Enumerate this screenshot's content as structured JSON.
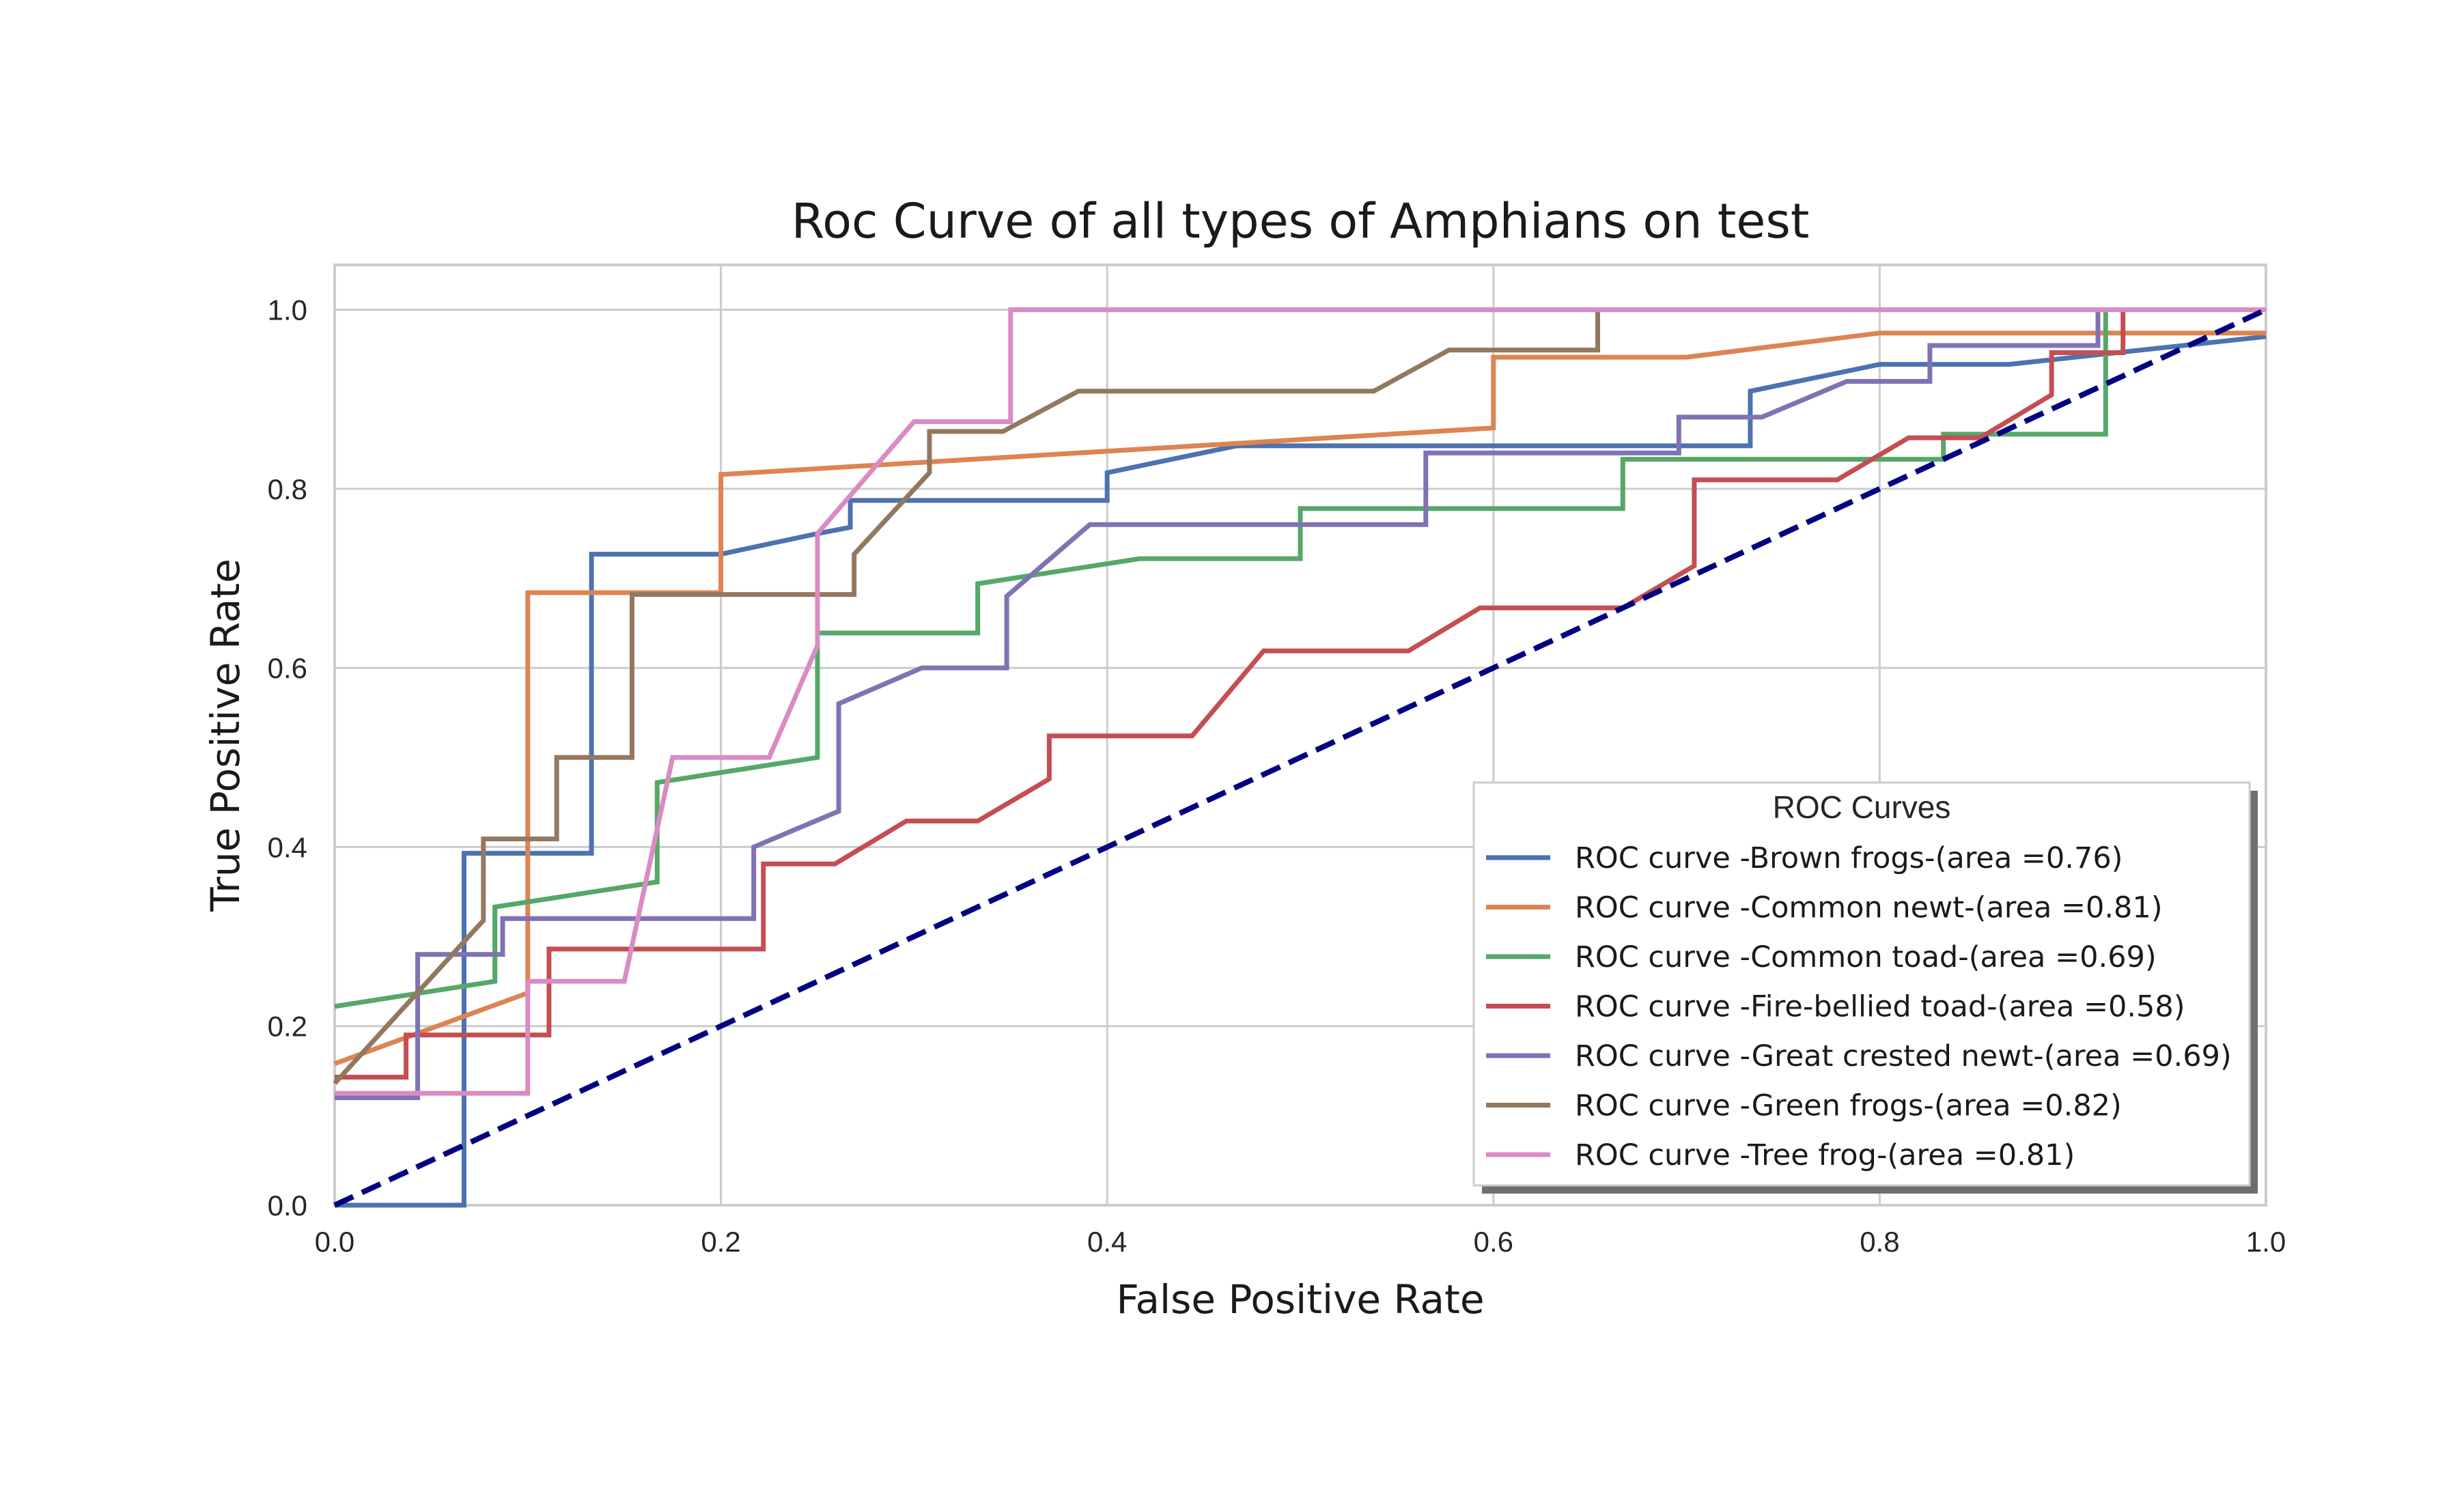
{
  "chart_data": {
    "type": "line",
    "title": "Roc Curve of all types of Amphians on test",
    "xlabel": "False Positive Rate",
    "ylabel": "True Positive Rate",
    "xlim": [
      0.0,
      1.0
    ],
    "ylim": [
      0.0,
      1.05
    ],
    "xticks": [
      "0.0",
      "0.2",
      "0.4",
      "0.6",
      "0.8",
      "1.0"
    ],
    "yticks": [
      "0.0",
      "0.2",
      "0.4",
      "0.6",
      "0.8",
      "1.0"
    ],
    "grid": true,
    "legend": {
      "title": "ROC Curves",
      "placement": "lower-right"
    },
    "baseline": {
      "color": "#000080",
      "style": "dashed",
      "x": [
        0,
        1
      ],
      "y": [
        0,
        1
      ]
    },
    "series": [
      {
        "name": "ROC curve -Brown frogs-(area =0.76)",
        "color": "#4c72b0",
        "x": [
          0,
          0.067,
          0.067,
          0.067,
          0.133,
          0.133,
          0.2,
          0.25,
          0.267,
          0.267,
          0.4,
          0.4,
          0.467,
          0.733,
          0.733,
          0.8,
          0.867,
          1.0
        ],
        "y": [
          0,
          0,
          0.0,
          0.393,
          0.393,
          0.727,
          0.727,
          0.75,
          0.757,
          0.787,
          0.787,
          0.818,
          0.848,
          0.848,
          0.909,
          0.939,
          0.939,
          0.97
        ]
      },
      {
        "name": "ROC curve -Common newt-(area =0.81)",
        "color": "#dd8452",
        "x": [
          0,
          0.1,
          0.1,
          0.2,
          0.2,
          0.6,
          0.6,
          0.7,
          0.8,
          1.0
        ],
        "y": [
          0.158,
          0.237,
          0.684,
          0.684,
          0.816,
          0.868,
          0.947,
          0.947,
          0.974,
          0.974
        ]
      },
      {
        "name": "ROC curve -Common toad-(area =0.69)",
        "color": "#55a868",
        "x": [
          0,
          0.083,
          0.083,
          0.167,
          0.167,
          0.25,
          0.25,
          0.333,
          0.333,
          0.417,
          0.5,
          0.5,
          0.667,
          0.667,
          0.833,
          0.833,
          0.917,
          0.917
        ],
        "y": [
          0.222,
          0.25,
          0.333,
          0.361,
          0.472,
          0.5,
          0.639,
          0.639,
          0.694,
          0.722,
          0.722,
          0.778,
          0.778,
          0.833,
          0.833,
          0.861,
          0.861,
          1.0
        ]
      },
      {
        "name": "ROC curve -Fire-bellied toad-(area =0.58)",
        "color": "#c44e52",
        "x": [
          0,
          0.037,
          0.037,
          0.111,
          0.111,
          0.222,
          0.222,
          0.259,
          0.296,
          0.333,
          0.37,
          0.37,
          0.444,
          0.481,
          0.556,
          0.593,
          0.667,
          0.704,
          0.704,
          0.778,
          0.815,
          0.852,
          0.889,
          0.889,
          0.926,
          0.926
        ],
        "y": [
          0.143,
          0.143,
          0.19,
          0.19,
          0.286,
          0.286,
          0.381,
          0.381,
          0.429,
          0.429,
          0.476,
          0.524,
          0.524,
          0.619,
          0.619,
          0.667,
          0.667,
          0.714,
          0.81,
          0.81,
          0.857,
          0.857,
          0.905,
          0.952,
          0.952,
          1.0
        ]
      },
      {
        "name": "ROC curve -Great crested newt-(area =0.69)",
        "color": "#8172b3",
        "x": [
          0,
          0.043,
          0.043,
          0.087,
          0.087,
          0.217,
          0.217,
          0.261,
          0.261,
          0.304,
          0.348,
          0.348,
          0.391,
          0.565,
          0.565,
          0.696,
          0.696,
          0.739,
          0.783,
          0.826,
          0.826,
          0.913,
          0.913
        ],
        "y": [
          0.12,
          0.12,
          0.28,
          0.28,
          0.32,
          0.32,
          0.4,
          0.44,
          0.56,
          0.6,
          0.6,
          0.68,
          0.76,
          0.76,
          0.84,
          0.84,
          0.88,
          0.88,
          0.92,
          0.92,
          0.96,
          0.96,
          1.0
        ]
      },
      {
        "name": "ROC curve -Green frogs-(area =0.82)",
        "color": "#937860",
        "x": [
          0,
          0.077,
          0.077,
          0.115,
          0.115,
          0.154,
          0.154,
          0.269,
          0.269,
          0.308,
          0.308,
          0.346,
          0.385,
          0.538,
          0.577,
          0.654,
          0.654
        ],
        "y": [
          0.136,
          0.318,
          0.409,
          0.409,
          0.5,
          0.5,
          0.682,
          0.682,
          0.727,
          0.818,
          0.864,
          0.864,
          0.909,
          0.909,
          0.955,
          0.955,
          1.0
        ]
      },
      {
        "name": "ROC curve -Tree frog-(area =0.81)",
        "color": "#da8bc3",
        "x": [
          0,
          0.1,
          0.1,
          0.15,
          0.175,
          0.225,
          0.25,
          0.25,
          0.3,
          0.35,
          0.35,
          1.0
        ],
        "y": [
          0.125,
          0.125,
          0.25,
          0.25,
          0.5,
          0.5,
          0.625,
          0.75,
          0.875,
          0.875,
          1.0,
          1.0
        ]
      }
    ]
  }
}
